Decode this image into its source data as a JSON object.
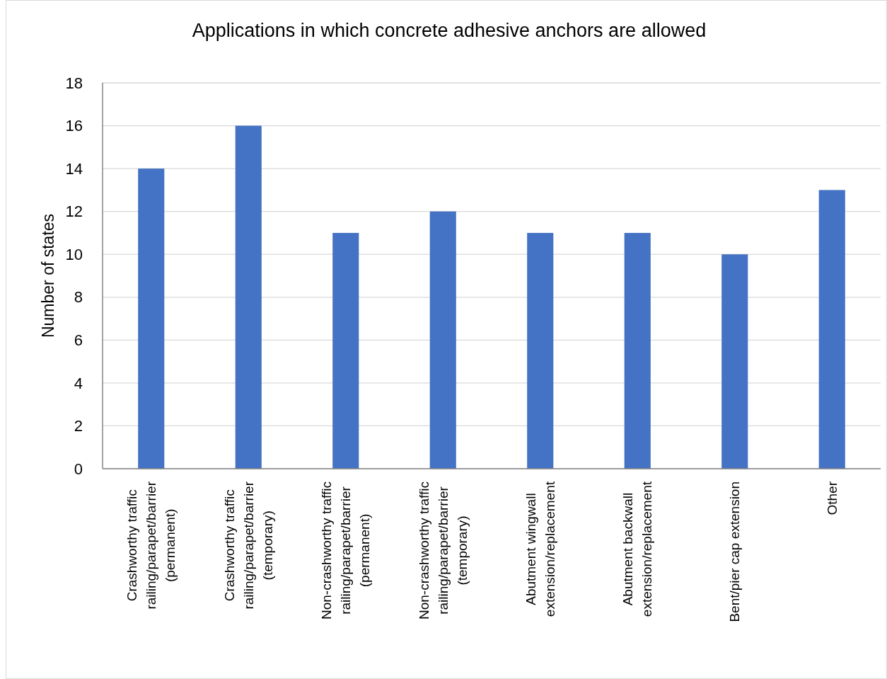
{
  "chart_data": {
    "type": "bar",
    "title": "Applications in which concrete adhesive anchors are allowed",
    "ylabel": "Number of states",
    "categories": [
      "Crashworthy traffic railing/parapet/barrier (permanent)",
      "Crashworthy traffic railing/parapet/barrier (temporary)",
      "Non-crashworthy traffic railing/parapet/barrier (permanent)",
      "Non-crashworthy traffic railing/parapet/barrier (temporary)",
      "Abutment wingwall extension/replacement",
      "Abutment backwall extension/replacement",
      "Bent/pier cap extension",
      "Other"
    ],
    "values": [
      14,
      16,
      11,
      12,
      11,
      11,
      10,
      13
    ],
    "color": "#4472c4",
    "ylim": [
      0,
      18
    ],
    "yticks": [
      0,
      2,
      4,
      6,
      8,
      10,
      12,
      14,
      16,
      18
    ],
    "grid": "y"
  }
}
